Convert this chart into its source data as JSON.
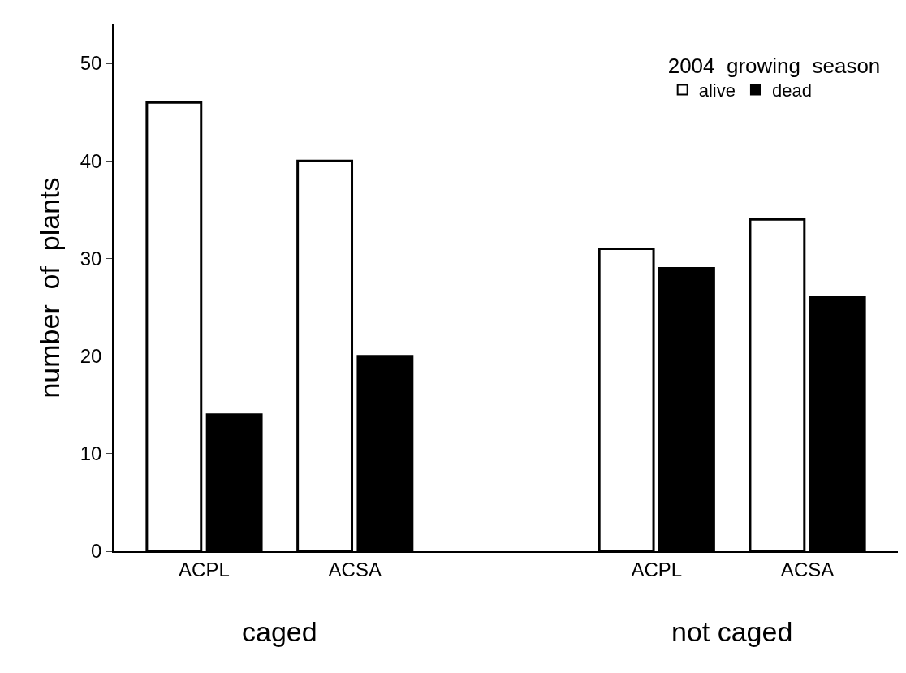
{
  "chart_data": {
    "type": "bar",
    "ylabel": "number  of  plants",
    "legend_title": "2004  growing  season",
    "categories": [
      "ACPL",
      "ACSA",
      null,
      "ACPL",
      "ACSA"
    ],
    "series": [
      {
        "name": "alive",
        "color": "#ffffff",
        "values": [
          46,
          40,
          null,
          31,
          34
        ]
      },
      {
        "name": "dead",
        "color": "#000000",
        "values": [
          14,
          20,
          null,
          29,
          26
        ]
      }
    ],
    "ylim": [
      0,
      54
    ],
    "yticks": [
      0,
      10,
      20,
      30,
      40,
      50
    ],
    "legend": "top right",
    "annotations": [
      "caged",
      "not caged"
    ]
  }
}
